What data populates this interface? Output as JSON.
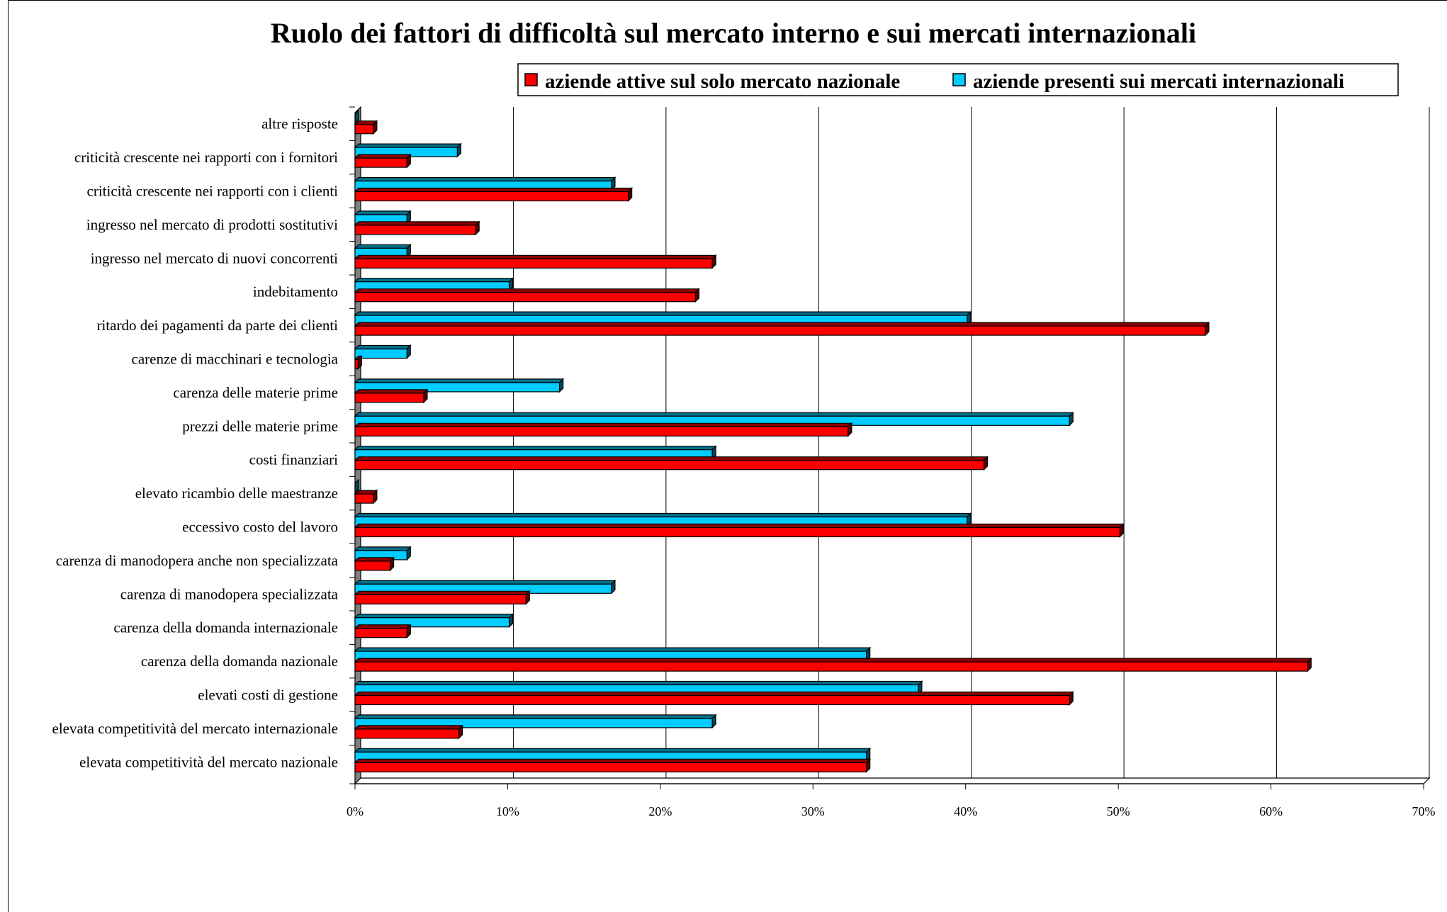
{
  "chart_data": {
    "type": "bar",
    "orientation": "horizontal",
    "title": "Ruolo dei fattori di difficoltà sul mercato interno e sui mercati internazionali",
    "categories": [
      "altre risposte",
      "criticità crescente nei rapporti con i fornitori",
      "criticità crescente nei rapporti con i clienti",
      "ingresso nel mercato di prodotti sostitutivi",
      "ingresso nel mercato di nuovi concorrenti",
      "indebitamento",
      "ritardo dei pagamenti da parte dei clienti",
      "carenze di macchinari e tecnologia",
      "carenza delle materie prime",
      "prezzi delle materie prime",
      "costi finanziari",
      "elevato ricambio delle maestranze",
      "eccessivo costo del lavoro",
      "carenza di manodopera anche non specializzata",
      "carenza di manodopera specializzata",
      "carenza della domanda internazionale",
      "carenza della domanda nazionale",
      "elevati costi di gestione",
      "elevata competitività del mercato internazionale",
      "elevata competitività del mercato nazionale"
    ],
    "series": [
      {
        "name": "aziende attive sul solo mercato nazionale",
        "color": "#ff0000",
        "values": [
          1.2,
          3.4,
          17.9,
          7.9,
          23.4,
          22.3,
          55.7,
          0.2,
          4.5,
          32.3,
          41.2,
          1.2,
          50.1,
          2.3,
          11.2,
          3.4,
          62.4,
          46.8,
          6.8,
          33.5
        ]
      },
      {
        "name": "aziende presenti sui mercati internazionali",
        "color": "#00ccff",
        "values": [
          0,
          6.7,
          16.8,
          3.4,
          3.4,
          10.1,
          40.1,
          3.4,
          13.4,
          46.8,
          23.4,
          0,
          40.1,
          3.4,
          16.8,
          10.1,
          33.5,
          36.9,
          23.4,
          33.5
        ]
      }
    ],
    "x_ticks": [
      "0%",
      "10%",
      "20%",
      "30%",
      "40%",
      "50%",
      "60%",
      "70%"
    ],
    "xlim": [
      0,
      70
    ],
    "grid": true,
    "legend_position": "top-right"
  }
}
